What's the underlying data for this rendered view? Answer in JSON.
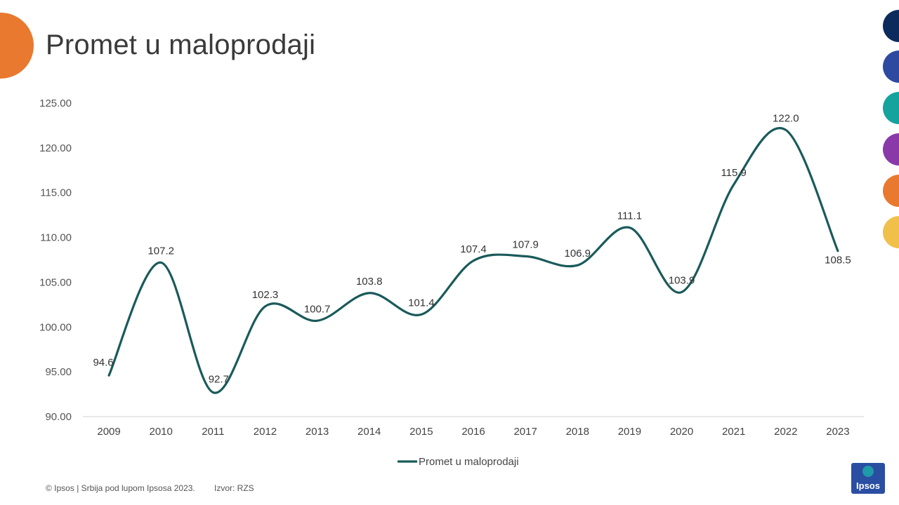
{
  "slide": {
    "title": "Promet u maloprodaji",
    "footer_left": "© Ipsos | Srbija pod lupom Ipsosa 2023.",
    "footer_source": "Izvor: RZS",
    "logo_text": "Ipsos"
  },
  "decor": {
    "accent_orange": "#E8792F",
    "side_dots": [
      "#0d2a5c",
      "#2d4aa0",
      "#15a39e",
      "#8a3aa8",
      "#E8792F",
      "#F0C04A"
    ]
  },
  "chart_data": {
    "type": "line",
    "title": "",
    "xlabel": "",
    "ylabel": "",
    "categories": [
      "2009",
      "2010",
      "2011",
      "2012",
      "2013",
      "2014",
      "2015",
      "2016",
      "2017",
      "2018",
      "2019",
      "2020",
      "2021",
      "2022",
      "2023"
    ],
    "series": [
      {
        "name": "Promet u maloprodaji",
        "color": "#1a5a5a",
        "values": [
          94.6,
          107.2,
          92.7,
          102.3,
          100.7,
          103.8,
          101.4,
          107.4,
          107.9,
          106.9,
          111.1,
          103.9,
          115.9,
          122.0,
          108.5
        ],
        "labels": [
          "94.6",
          "107.2",
          "92.7",
          "102.3",
          "100.7",
          "103.8",
          "101.4",
          "107.4",
          "107.9",
          "106.9",
          "111.1",
          "103.9",
          "115.9",
          "122.0",
          "108.5"
        ]
      }
    ],
    "ylim": [
      90,
      125
    ],
    "yticks": [
      90,
      95,
      100,
      105,
      110,
      115,
      120,
      125
    ],
    "ytick_labels": [
      "90.00",
      "95.00",
      "100.00",
      "105.00",
      "110.00",
      "115.00",
      "120.00",
      "125.00"
    ],
    "grid": false,
    "legend": "bottom-center",
    "smooth": true
  }
}
